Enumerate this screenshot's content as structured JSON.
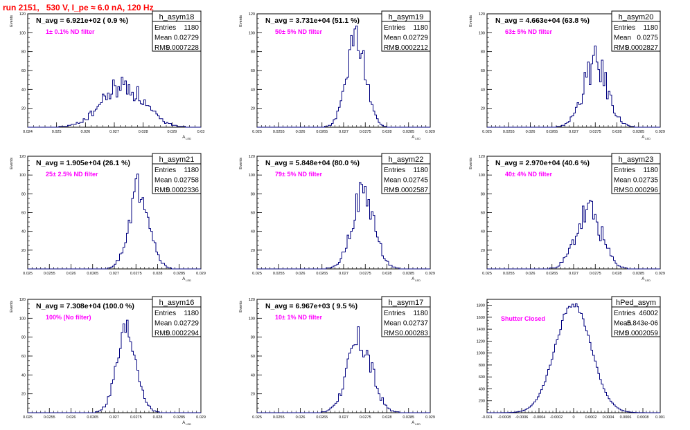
{
  "page_title": "run 2151,   530 V, I_pe ≈ 6.0 nA, 120 Hz",
  "colors": {
    "title": "#ff0000",
    "histogram": "#00007f",
    "filter_label": "#ff00ff"
  },
  "chart_data": [
    {
      "type": "histogram",
      "name": "h_asym18",
      "summary": "N_avg = 6.921e+02 ( 0.9 %)",
      "filter_label": "1± 0.1% ND filter",
      "stats": [
        [
          "Entries",
          "1180"
        ],
        [
          "Mean",
          "0.02729"
        ],
        [
          "RMS",
          "0.0007228"
        ]
      ],
      "xlim": [
        0.024,
        0.03
      ],
      "ylim": [
        0,
        120
      ],
      "xticks": [
        "0.024",
        "0.025",
        "0.026",
        "0.027",
        "0.028",
        "0.029",
        "0.03"
      ],
      "yticks": [
        "20",
        "40",
        "60",
        "80",
        "100",
        "120"
      ],
      "xlabel": "A_LED",
      "ylabel": "Events",
      "hist": {
        "mean": 0.02729,
        "sigma": 0.0007228,
        "peak": 44,
        "bins": 100,
        "noise": 0.28,
        "seed": 18
      }
    },
    {
      "type": "histogram",
      "name": "h_asym19",
      "summary": "N_avg = 3.731e+04 (51.1 %)",
      "filter_label": "50± 5% ND filter",
      "stats": [
        [
          "Entries",
          "1180"
        ],
        [
          "Mean",
          "0.02729"
        ],
        [
          "RMS",
          "0.0002212"
        ]
      ],
      "xlim": [
        0.025,
        0.029
      ],
      "ylim": [
        0,
        120
      ],
      "xticks": [
        "0.025",
        "0.0255",
        "0.026",
        "0.0265",
        "0.027",
        "0.0275",
        "0.028",
        "0.0285",
        "0.029"
      ],
      "yticks": [
        "20",
        "40",
        "60",
        "80",
        "100",
        "120"
      ],
      "xlabel": "A_LED",
      "ylabel": "Events",
      "hist": {
        "mean": 0.02729,
        "sigma": 0.0002212,
        "peak": 93,
        "bins": 100,
        "noise": 0.2,
        "seed": 19
      }
    },
    {
      "type": "histogram",
      "name": "h_asym20",
      "summary": "N_avg = 4.663e+04 (63.8 %)",
      "filter_label": "63± 5% ND filter",
      "stats": [
        [
          "Entries",
          "1180"
        ],
        [
          "Mean",
          "0.0275"
        ],
        [
          "RMS",
          "0.0002827"
        ]
      ],
      "xlim": [
        0.025,
        0.029
      ],
      "ylim": [
        0,
        120
      ],
      "xticks": [
        "0.025",
        "0.0255",
        "0.026",
        "0.0265",
        "0.027",
        "0.0275",
        "0.028",
        "0.0285",
        "0.029"
      ],
      "yticks": [
        "20",
        "40",
        "60",
        "80",
        "100",
        "120"
      ],
      "xlabel": "A_LED",
      "ylabel": "Events",
      "hist": {
        "mean": 0.0275,
        "sigma": 0.0002827,
        "peak": 66,
        "bins": 100,
        "noise": 0.3,
        "seed": 20
      }
    },
    {
      "type": "histogram",
      "name": "h_asym21",
      "summary": "N_avg = 1.905e+04 (26.1 %)",
      "filter_label": "25± 2.5% ND filter",
      "stats": [
        [
          "Entries",
          "1180"
        ],
        [
          "Mean",
          "0.02758"
        ],
        [
          "RMS",
          "0.0002336"
        ]
      ],
      "xlim": [
        0.025,
        0.029
      ],
      "ylim": [
        0,
        120
      ],
      "xticks": [
        "0.025",
        "0.0255",
        "0.026",
        "0.0265",
        "0.027",
        "0.0275",
        "0.028",
        "0.0285",
        "0.029"
      ],
      "yticks": [
        "20",
        "40",
        "60",
        "80",
        "100",
        "120"
      ],
      "xlabel": "A_LED",
      "ylabel": "Events",
      "hist": {
        "mean": 0.02758,
        "sigma": 0.0002336,
        "peak": 88,
        "bins": 100,
        "noise": 0.2,
        "seed": 21
      }
    },
    {
      "type": "histogram",
      "name": "h_asym22",
      "summary": "N_avg = 5.848e+04 (80.0 %)",
      "filter_label": "79± 5% ND filter",
      "stats": [
        [
          "Entries",
          "1180"
        ],
        [
          "Mean",
          "0.02745"
        ],
        [
          "RMS",
          "0.0002587"
        ]
      ],
      "xlim": [
        0.025,
        0.029
      ],
      "ylim": [
        0,
        120
      ],
      "xticks": [
        "0.025",
        "0.0255",
        "0.026",
        "0.0265",
        "0.027",
        "0.0275",
        "0.028",
        "0.0285",
        "0.029"
      ],
      "yticks": [
        "20",
        "40",
        "60",
        "80",
        "100",
        "120"
      ],
      "xlabel": "A_LED",
      "ylabel": "Events",
      "hist": {
        "mean": 0.02745,
        "sigma": 0.0002587,
        "peak": 80,
        "bins": 100,
        "noise": 0.22,
        "seed": 22
      }
    },
    {
      "type": "histogram",
      "name": "h_asym23",
      "summary": "N_avg = 2.970e+04 (40.6 %)",
      "filter_label": "40± 4% ND filter",
      "stats": [
        [
          "Entries",
          "1180"
        ],
        [
          "Mean",
          "0.02735"
        ],
        [
          "RMS",
          "0.000296"
        ]
      ],
      "xlim": [
        0.025,
        0.029
      ],
      "ylim": [
        0,
        120
      ],
      "xticks": [
        "0.025",
        "0.0255",
        "0.026",
        "0.0265",
        "0.027",
        "0.0275",
        "0.028",
        "0.0285",
        "0.029"
      ],
      "yticks": [
        "20",
        "40",
        "60",
        "80",
        "100",
        "120"
      ],
      "xlabel": "A_LED",
      "ylabel": "Events",
      "hist": {
        "mean": 0.02735,
        "sigma": 0.000296,
        "peak": 60,
        "bins": 100,
        "noise": 0.3,
        "seed": 23
      }
    },
    {
      "type": "histogram",
      "name": "h_asym16",
      "summary": "N_avg = 7.308e+04 (100.0 %)",
      "filter_label": "100% (No filter)",
      "stats": [
        [
          "Entries",
          "1180"
        ],
        [
          "Mean",
          "0.02729"
        ],
        [
          "RMS",
          "0.0002294"
        ]
      ],
      "xlim": [
        0.025,
        0.029
      ],
      "ylim": [
        0,
        120
      ],
      "xticks": [
        "0.025",
        "0.0255",
        "0.026",
        "0.0265",
        "0.027",
        "0.0275",
        "0.028",
        "0.0285",
        "0.029"
      ],
      "yticks": [
        "20",
        "40",
        "60",
        "80",
        "100",
        "120"
      ],
      "xlabel": "A_LED",
      "ylabel": "Events",
      "hist": {
        "mean": 0.02729,
        "sigma": 0.0002294,
        "peak": 87,
        "bins": 100,
        "noise": 0.2,
        "seed": 16
      }
    },
    {
      "type": "histogram",
      "name": "h_asym17",
      "summary": "N_avg = 6.967e+03 ( 9.5 %)",
      "filter_label": "10± 1% ND filter",
      "stats": [
        [
          "Entries",
          "1180"
        ],
        [
          "Mean",
          "0.02737"
        ],
        [
          "RMS",
          "0.000283"
        ]
      ],
      "xlim": [
        0.025,
        0.029
      ],
      "ylim": [
        0,
        120
      ],
      "xticks": [
        "0.025",
        "0.0255",
        "0.026",
        "0.0265",
        "0.027",
        "0.0275",
        "0.028",
        "0.0285",
        "0.029"
      ],
      "yticks": [
        "20",
        "40",
        "60",
        "80",
        "100",
        "120"
      ],
      "xlabel": "A_LED",
      "ylabel": "Events",
      "hist": {
        "mean": 0.02737,
        "sigma": 0.000283,
        "peak": 74,
        "bins": 100,
        "noise": 0.25,
        "seed": 17
      }
    },
    {
      "type": "histogram",
      "name": "hPed_asym",
      "summary": "",
      "filter_label": "Shutter Closed",
      "stats": [
        [
          "Entries",
          "46002"
        ],
        [
          "Mean",
          "-5.843e-06"
        ],
        [
          "RMS",
          "0.0002059"
        ]
      ],
      "xlim": [
        -0.001,
        0.001
      ],
      "ylim": [
        0,
        1900
      ],
      "xticks": [
        "-0.001",
        "-0.0008",
        "-0.0006",
        "-0.0004",
        "-0.0002",
        "0",
        "0.0002",
        "0.0004",
        "0.0006",
        "0.0008",
        "0.001"
      ],
      "yticks": [
        "200",
        "400",
        "600",
        "800",
        "1000",
        "1200",
        "1400",
        "1600",
        "1800"
      ],
      "xlabel": "",
      "ylabel": "",
      "hist": {
        "mean": -5.843e-06,
        "sigma": 0.0002059,
        "peak": 1830,
        "bins": 100,
        "noise": 0.03,
        "seed": 99
      }
    }
  ]
}
